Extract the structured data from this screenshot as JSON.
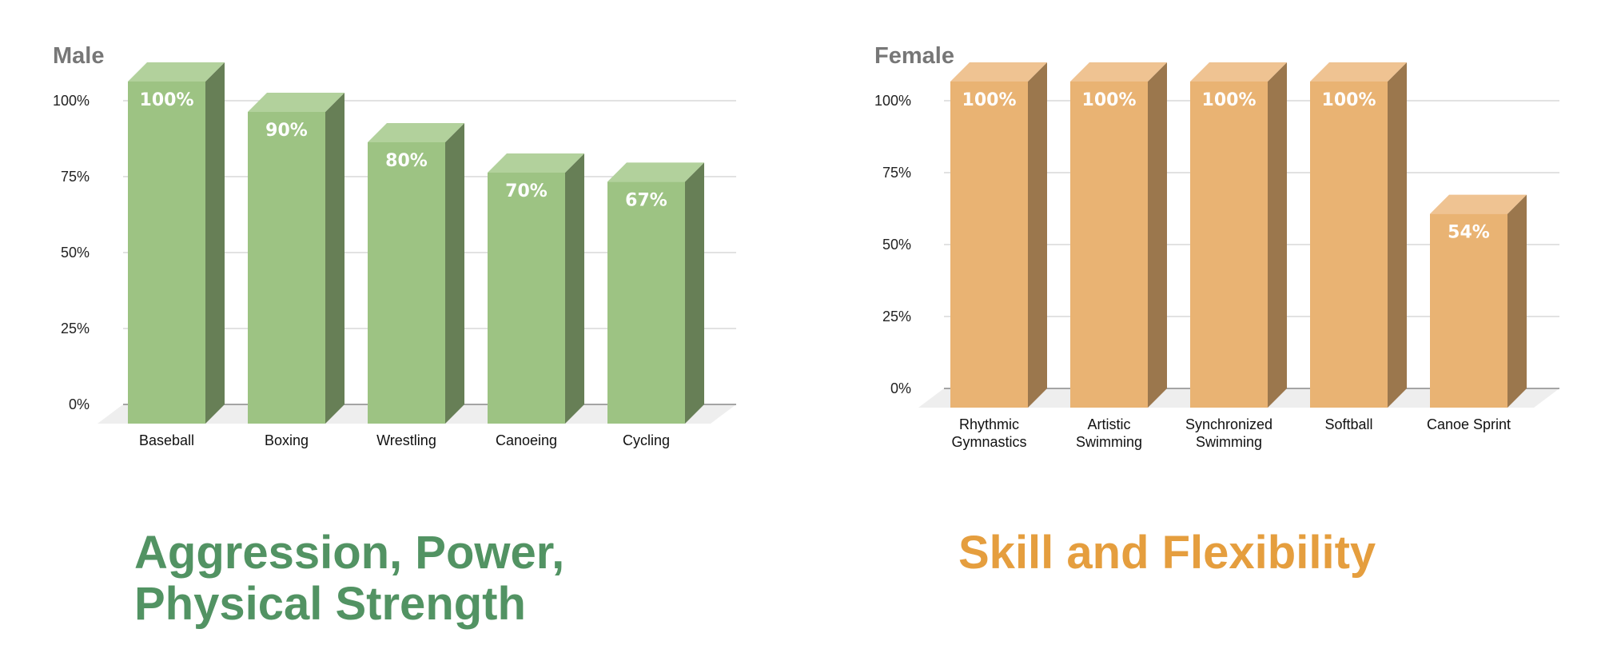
{
  "chart_data": [
    {
      "type": "bar",
      "title": "Male",
      "categories": [
        "Baseball",
        "Boxing",
        "Wrestling",
        "Canoeing",
        "Cycling"
      ],
      "values": [
        100,
        90,
        80,
        70,
        67
      ],
      "data_labels": [
        "100%",
        "90%",
        "80%",
        "70%",
        "67%"
      ],
      "y_ticks": [
        "0%",
        "25%",
        "50%",
        "75%",
        "100%"
      ],
      "ylim": [
        0,
        100
      ],
      "grid": true,
      "style": "3d-column",
      "colors": {
        "front": "#9dc383",
        "side": "#677f56",
        "top": "#b2d19c"
      }
    },
    {
      "type": "bar",
      "title": "Female",
      "categories": [
        [
          "Rhythmic",
          "Gymnastics"
        ],
        [
          "Artistic",
          "Swimming"
        ],
        [
          "Synchronized",
          "Swimming"
        ],
        [
          "Softball"
        ],
        [
          "Canoe Sprint"
        ]
      ],
      "values": [
        100,
        100,
        100,
        100,
        54
      ],
      "data_labels": [
        "100%",
        "100%",
        "100%",
        "100%",
        "54%"
      ],
      "y_ticks": [
        "0%",
        "25%",
        "50%",
        "75%",
        "100%"
      ],
      "ylim": [
        0,
        100
      ],
      "grid": true,
      "style": "3d-column",
      "colors": {
        "front": "#e9b373",
        "side": "#9b774d",
        "top": "#efc392"
      }
    }
  ],
  "headlines": {
    "male": {
      "lines": [
        "Aggression, Power,",
        "Physical Strength"
      ],
      "color": "#529363"
    },
    "female": {
      "lines": [
        "Skill and Flexibility"
      ],
      "color": "#e59e3e"
    }
  },
  "text_color": "#777777"
}
